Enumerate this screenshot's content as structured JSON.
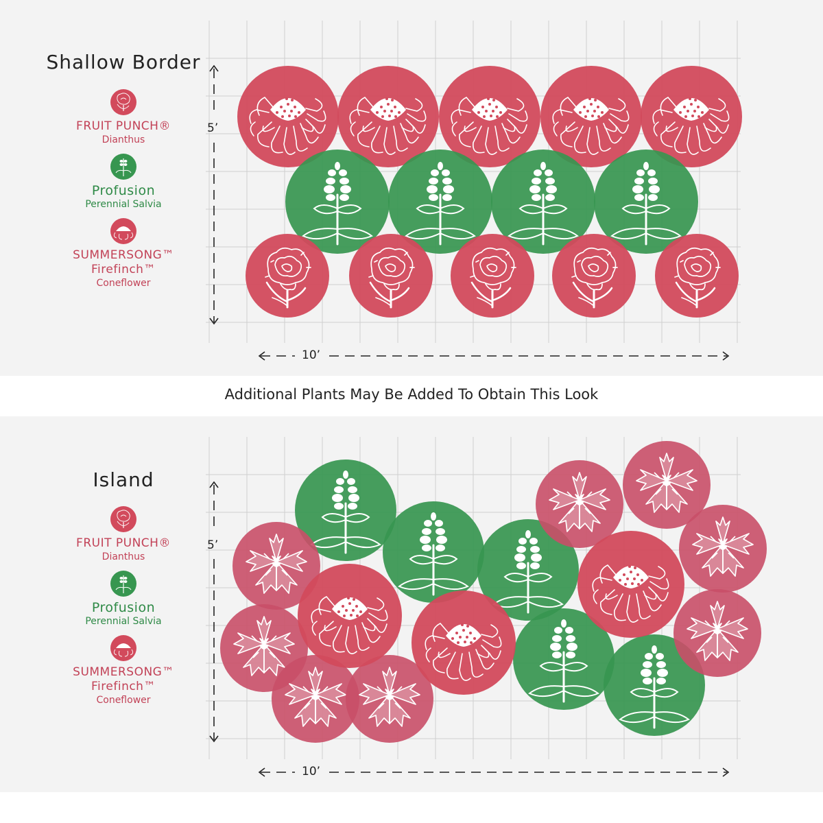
{
  "caption": "Additional Plants May Be Added To Obtain This Look",
  "colors": {
    "red": "#d24a5c",
    "pink": "#c94f68",
    "green": "#379650",
    "grid": "#cfcfcf",
    "panel": "#f3f3f3"
  },
  "plans": [
    {
      "title": "Shallow Border",
      "width_label": "10’",
      "height_label": "5’",
      "legend": [
        {
          "name": "FRUIT PUNCH®",
          "sub": "Dianthus",
          "color": "red",
          "icon": "dianthus-icon"
        },
        {
          "name": "Profusion",
          "sub": "Perennial Salvia",
          "color": "green",
          "icon": "salvia-icon"
        },
        {
          "name": "SUMMERSONG™",
          "name2": "Firefinch™",
          "sub": "Coneflower",
          "color": "red",
          "icon": "coneflower-icon"
        }
      ]
    },
    {
      "title": "Island",
      "width_label": "10’",
      "height_label": "5’",
      "legend": [
        {
          "name": "FRUIT PUNCH®",
          "sub": "Dianthus",
          "color": "red",
          "icon": "dianthus-icon"
        },
        {
          "name": "Profusion",
          "sub": "Perennial Salvia",
          "color": "green",
          "icon": "salvia-icon"
        },
        {
          "name": "SUMMERSONG™",
          "name2": "Firefinch™",
          "sub": "Coneflower",
          "color": "red",
          "icon": "coneflower-icon"
        }
      ]
    }
  ]
}
